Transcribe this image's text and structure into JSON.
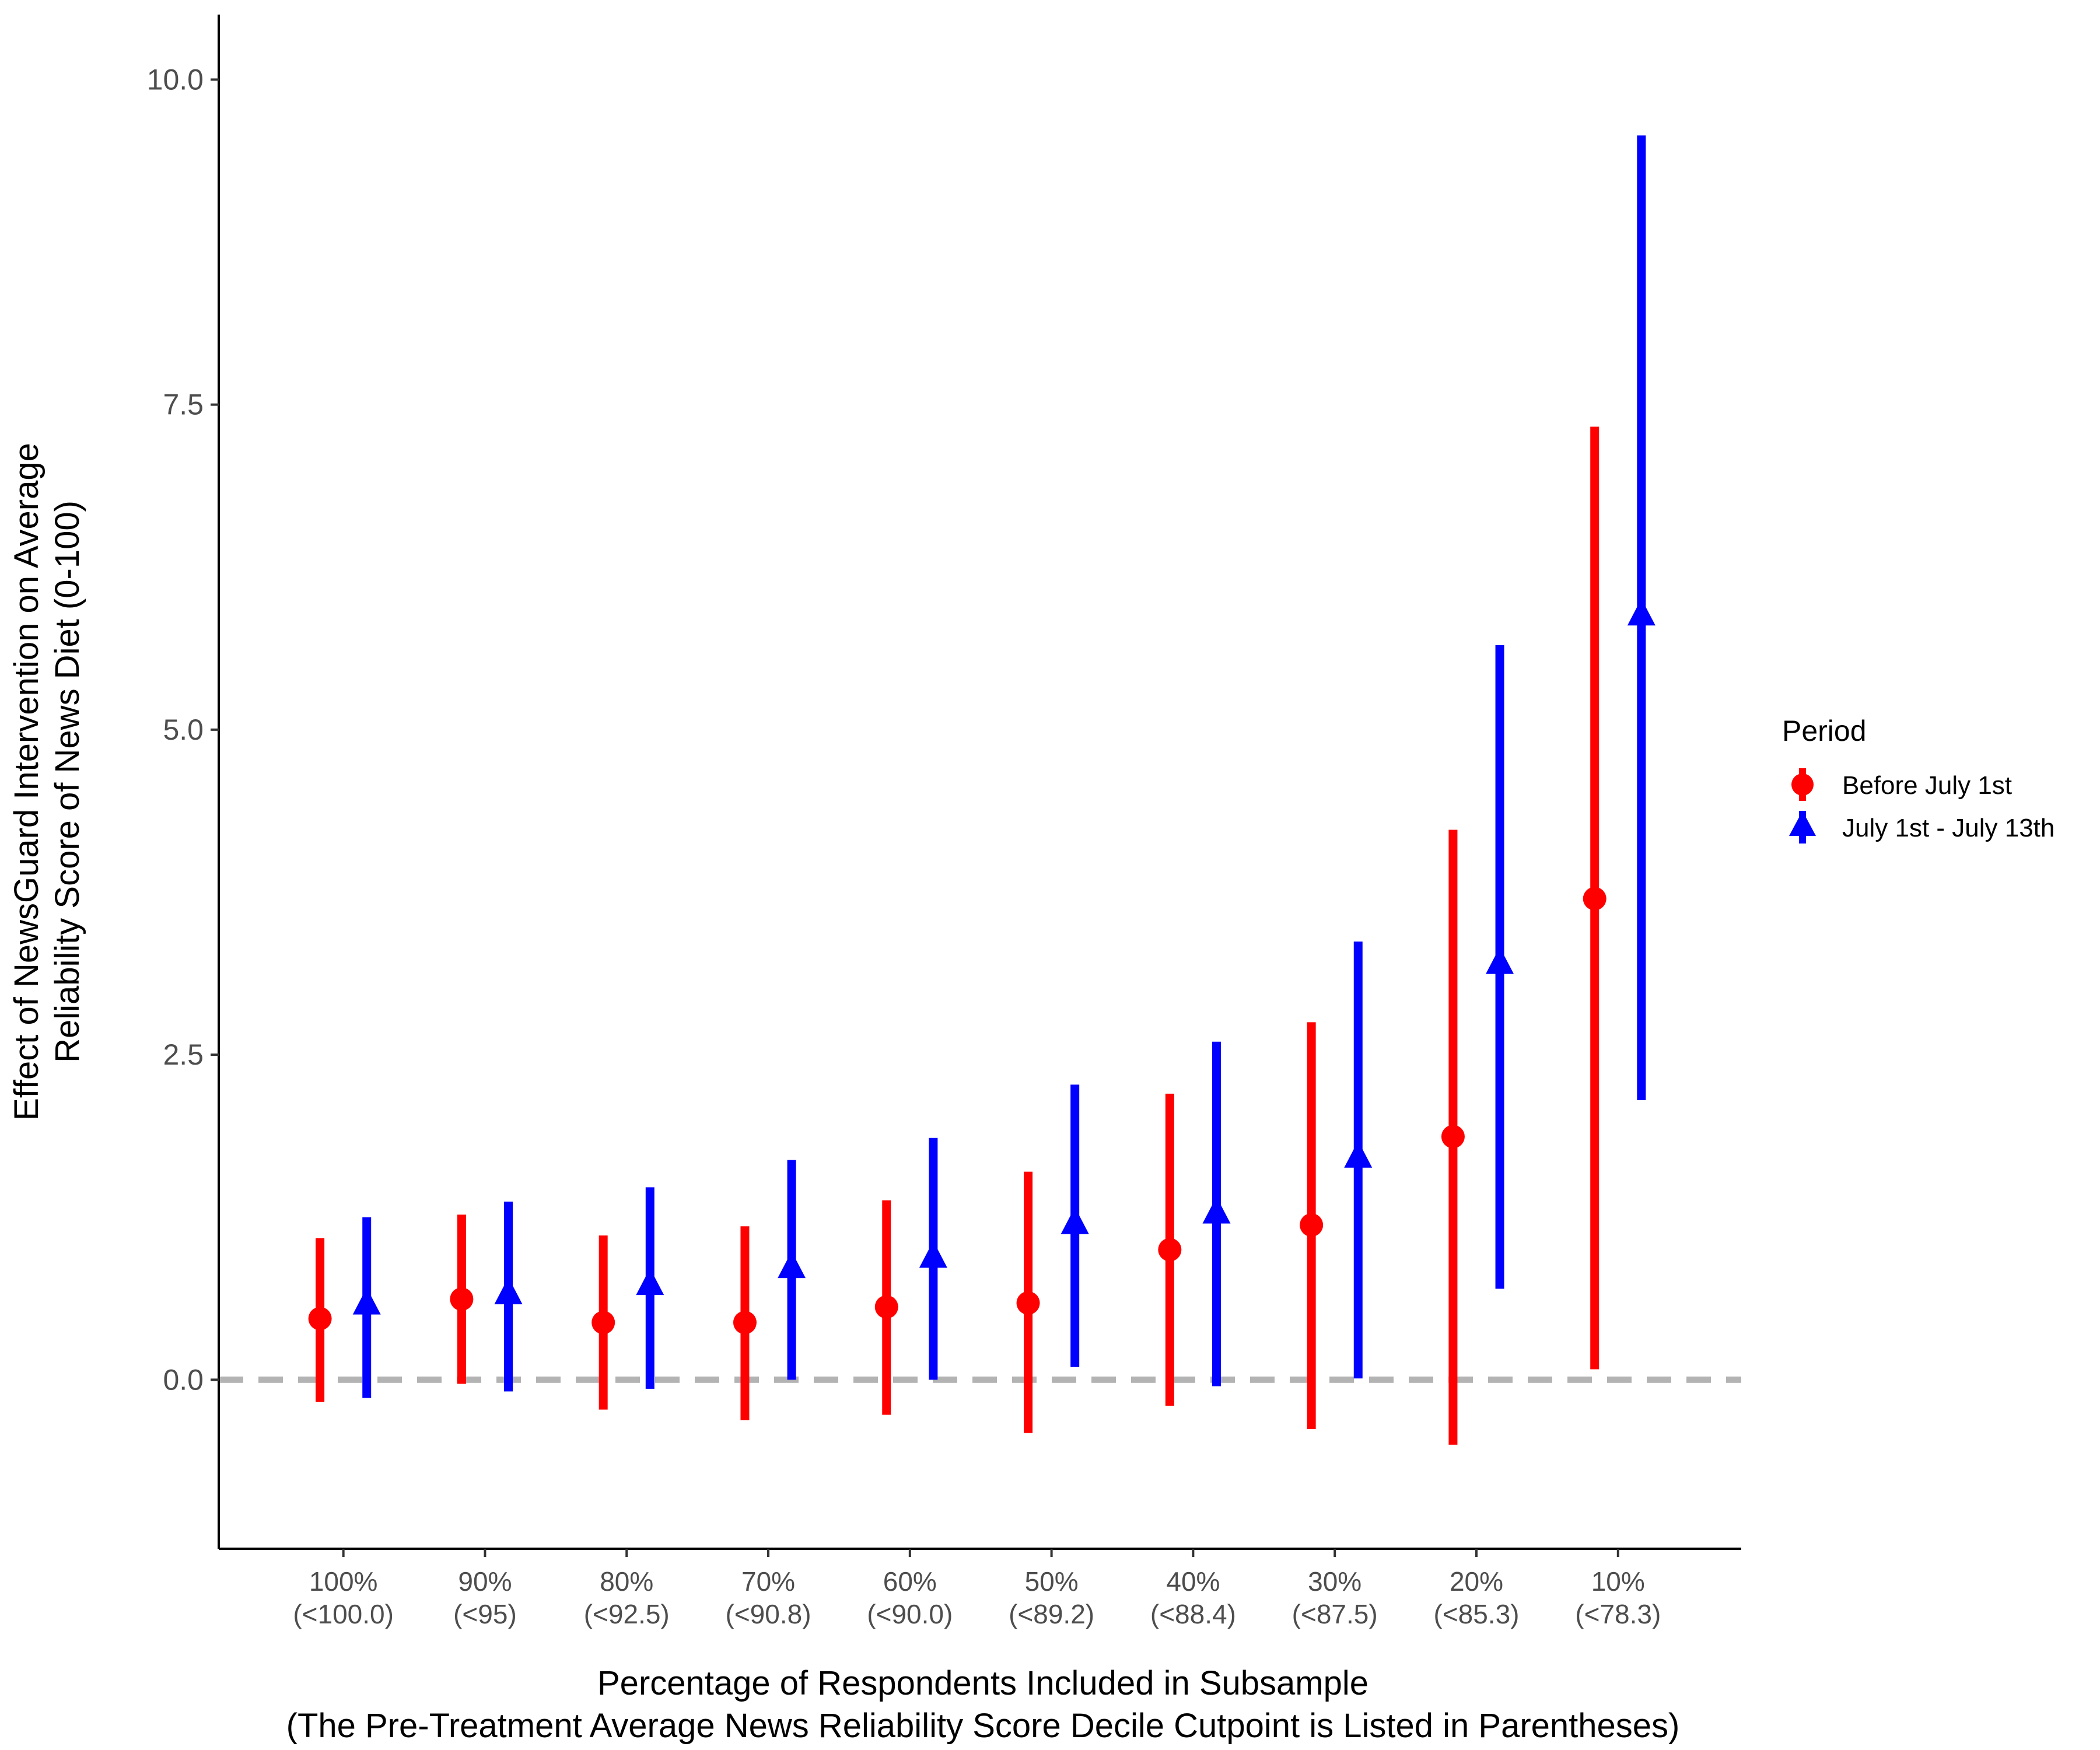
{
  "chart_data": {
    "type": "scatter",
    "subtype": "point-range",
    "title": "",
    "xlabel_line1": "Percentage of Respondents Included in Subsample",
    "xlabel_line2": "(The Pre-Treatment Average News Reliability Score Decile Cutpoint is Listed in Parentheses)",
    "ylabel_line1": "Effect of NewsGuard Intervention on Average",
    "ylabel_line2": "Reliability Score of News Diet (0-100)",
    "ylim": [
      -1.3,
      10.5
    ],
    "yticks": [
      "0.0",
      "2.5",
      "5.0",
      "7.5",
      "10.0"
    ],
    "categories": [
      {
        "pct": "100%",
        "cut": "(<100.0)"
      },
      {
        "pct": "90%",
        "cut": "(<95)"
      },
      {
        "pct": "80%",
        "cut": "(<92.5)"
      },
      {
        "pct": "70%",
        "cut": "(<90.8)"
      },
      {
        "pct": "60%",
        "cut": "(<90.0)"
      },
      {
        "pct": "50%",
        "cut": "(<89.2)"
      },
      {
        "pct": "40%",
        "cut": "(<88.4)"
      },
      {
        "pct": "30%",
        "cut": "(<87.5)"
      },
      {
        "pct": "20%",
        "cut": "(<85.3)"
      },
      {
        "pct": "10%",
        "cut": "(<78.3)"
      }
    ],
    "reference_line": {
      "y": 0,
      "style": "dashed",
      "color": "#b3b3b3"
    },
    "legend": {
      "title": "Period",
      "position": "right"
    },
    "series": [
      {
        "name": "Before July 1st",
        "color": "#ff0000",
        "shape": "circle",
        "estimate": [
          0.47,
          0.62,
          0.44,
          0.44,
          0.56,
          0.59,
          1.0,
          1.19,
          1.87,
          3.7
        ],
        "lower": [
          -0.17,
          -0.03,
          -0.23,
          -0.31,
          -0.27,
          -0.41,
          -0.2,
          -0.38,
          -0.5,
          0.08
        ],
        "upper": [
          1.09,
          1.27,
          1.11,
          1.18,
          1.38,
          1.6,
          2.2,
          2.75,
          4.23,
          7.33
        ]
      },
      {
        "name": "July 1st - July 13th",
        "color": "#0000ff",
        "shape": "triangle",
        "estimate": [
          0.57,
          0.65,
          0.72,
          0.85,
          0.93,
          1.19,
          1.27,
          1.7,
          3.19,
          5.87
        ],
        "lower": [
          -0.14,
          -0.09,
          -0.07,
          0.0,
          0.0,
          0.1,
          -0.05,
          0.01,
          0.7,
          2.15
        ],
        "upper": [
          1.25,
          1.37,
          1.48,
          1.69,
          1.86,
          2.27,
          2.6,
          3.37,
          5.65,
          9.57
        ]
      }
    ]
  }
}
